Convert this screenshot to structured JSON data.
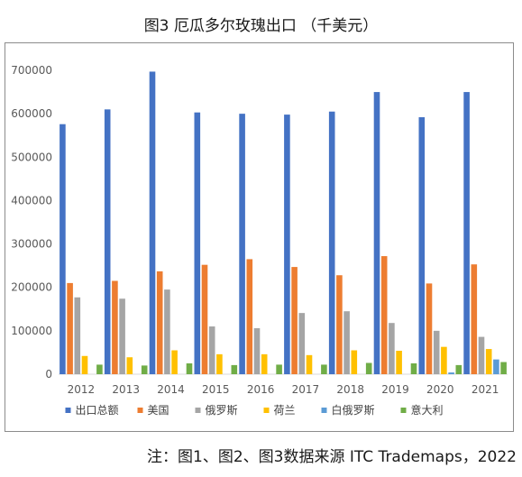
{
  "figure_title": "图3  厄瓜多尔玫瑰出口 （千美元）",
  "footnote": "注：图1、图2、图3数据来源 ITC Trademaps，2022",
  "chart_data": {
    "type": "bar",
    "title": "",
    "xlabel": "",
    "ylabel": "",
    "ylim": [
      0,
      700000
    ],
    "yticks": [
      0,
      100000,
      200000,
      300000,
      400000,
      500000,
      600000,
      700000
    ],
    "ytick_labels": [
      "0",
      "100000",
      "200000",
      "300000",
      "400000",
      "500000",
      "600000",
      "700000"
    ],
    "grid": false,
    "legend_position": "bottom",
    "categories": [
      "2012",
      "2013",
      "2014",
      "2015",
      "2016",
      "2017",
      "2018",
      "2019",
      "2020",
      "2021"
    ],
    "series": [
      {
        "name": "出口总额",
        "color": "#4472C4",
        "values": [
          576000,
          610000,
          697000,
          603000,
          600000,
          598000,
          605000,
          650000,
          592000,
          650000
        ]
      },
      {
        "name": "美国",
        "color": "#ED7D31",
        "values": [
          210000,
          215000,
          237000,
          252000,
          265000,
          247000,
          228000,
          272000,
          209000,
          253000
        ]
      },
      {
        "name": "俄罗斯",
        "color": "#A5A5A5",
        "values": [
          177000,
          174000,
          195000,
          110000,
          106000,
          141000,
          145000,
          118000,
          100000,
          86000
        ]
      },
      {
        "name": "荷兰",
        "color": "#FFC000",
        "values": [
          42000,
          39000,
          55000,
          46000,
          46000,
          44000,
          55000,
          54000,
          63000,
          58000
        ]
      },
      {
        "name": "白俄罗斯",
        "color": "#5B9BD5",
        "values": [
          0,
          0,
          0,
          0,
          0,
          0,
          0,
          0,
          4000,
          34000
        ]
      },
      {
        "name": "意大利",
        "color": "#70AD47",
        "values": [
          22000,
          20000,
          25000,
          21000,
          22000,
          22000,
          26000,
          25000,
          21000,
          28000
        ]
      }
    ]
  }
}
